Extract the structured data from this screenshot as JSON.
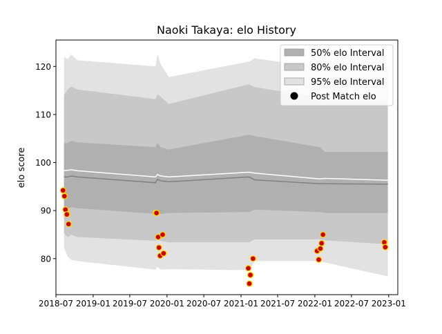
{
  "chart_data": {
    "type": "area",
    "title": "Naoki Takaya: elo History",
    "xlabel": "",
    "ylabel": "elo score",
    "xlim": [
      "2018-07-01",
      "2023-02-15"
    ],
    "ylim": [
      72.5,
      125.5
    ],
    "x_ticks": [
      "2018-07",
      "2019-01",
      "2019-07",
      "2020-01",
      "2020-07",
      "2021-01",
      "2021-07",
      "2022-01",
      "2022-07",
      "2023-01"
    ],
    "y_ticks": [
      80,
      90,
      100,
      110,
      120
    ],
    "grid": false,
    "legend_position": "top-right",
    "legend": [
      {
        "label": "50% elo Interval",
        "color": "#b0b0b0",
        "kind": "patch"
      },
      {
        "label": "80% elo Interval",
        "color": "#c8c8c8",
        "kind": "patch"
      },
      {
        "label": "95% elo Interval",
        "color": "#e2e2e2",
        "kind": "patch"
      },
      {
        "label": "Post Match elo",
        "color": "#000000",
        "kind": "marker"
      }
    ],
    "bands": {
      "x": [
        "2018-08-10",
        "2018-08-28",
        "2018-09-15",
        "2018-10-15",
        "2019-11-05",
        "2019-11-15",
        "2019-12-01",
        "2020-01-10",
        "2021-02-10",
        "2021-03-10",
        "2022-01-25",
        "2022-02-20",
        "2022-12-28"
      ],
      "p95_low": [
        82.2,
        80.5,
        79.7,
        79.5,
        77.7,
        78.3,
        77.7,
        77.8,
        77.6,
        79.5,
        79.5,
        79.2,
        76.3
      ],
      "p95_high": [
        122,
        121.5,
        122.5,
        121.3,
        120,
        122.5,
        120.5,
        117.8,
        121,
        121.7,
        119.8,
        119.8,
        119.8
      ],
      "p80_low": [
        85.3,
        84.5,
        85,
        84.5,
        83.7,
        84,
        83.7,
        83.4,
        83.4,
        84,
        84,
        83.8,
        83
      ],
      "p80_high": [
        114,
        115.2,
        115.8,
        115.2,
        113.2,
        114.2,
        113.7,
        112.2,
        116.3,
        115.7,
        113.5,
        113,
        113
      ],
      "p50_low": [
        90.7,
        90.5,
        90.7,
        90.5,
        89.3,
        89.7,
        89.3,
        89.5,
        89.7,
        90.2,
        89.7,
        89.5,
        89.5
      ],
      "p50_high": [
        104,
        104.1,
        104.5,
        104.2,
        103.2,
        104.1,
        103.2,
        102.7,
        105.8,
        105.5,
        103.2,
        102.2,
        102.2
      ],
      "median": [
        97,
        97,
        97.2,
        97,
        95.8,
        96.5,
        96.2,
        96,
        97,
        96.4,
        95.6,
        95.6,
        95.5
      ],
      "mean": [
        98.3,
        98.4,
        98.5,
        98.3,
        97,
        97.5,
        97.2,
        97,
        98,
        97.8,
        96.6,
        96.7,
        96.3
      ]
    },
    "series": [
      {
        "name": "Post Match elo",
        "points": [
          {
            "x": "2018-08-05",
            "y": 94.2
          },
          {
            "x": "2018-08-12",
            "y": 93
          },
          {
            "x": "2018-08-17",
            "y": 90.2
          },
          {
            "x": "2018-08-24",
            "y": 89.2
          },
          {
            "x": "2018-09-01",
            "y": 87.2
          },
          {
            "x": "2019-11-05",
            "y": 89.5
          },
          {
            "x": "2019-11-10",
            "y": 89.5
          },
          {
            "x": "2019-11-18",
            "y": 84.5
          },
          {
            "x": "2019-11-22",
            "y": 82.3
          },
          {
            "x": "2019-11-28",
            "y": 80.6
          },
          {
            "x": "2019-12-10",
            "y": 85
          },
          {
            "x": "2019-12-15",
            "y": 81.1
          },
          {
            "x": "2021-02-06",
            "y": 78
          },
          {
            "x": "2021-02-11",
            "y": 74.8
          },
          {
            "x": "2021-02-16",
            "y": 76.6
          },
          {
            "x": "2021-03-01",
            "y": 80
          },
          {
            "x": "2022-01-12",
            "y": 81.6
          },
          {
            "x": "2022-01-20",
            "y": 79.8
          },
          {
            "x": "2022-01-28",
            "y": 82.1
          },
          {
            "x": "2022-02-03",
            "y": 83.2
          },
          {
            "x": "2022-02-10",
            "y": 85
          },
          {
            "x": "2022-12-10",
            "y": 83.4
          },
          {
            "x": "2022-12-15",
            "y": 82.4
          }
        ],
        "marker_fill": "#cc0000",
        "marker_edge": "#ffd700"
      }
    ],
    "colors": {
      "band95": "#e2e2e2",
      "band80": "#c8c8c8",
      "band50": "#b0b0b0",
      "median_line": "#808080",
      "mean_line": "#ffffff"
    }
  }
}
